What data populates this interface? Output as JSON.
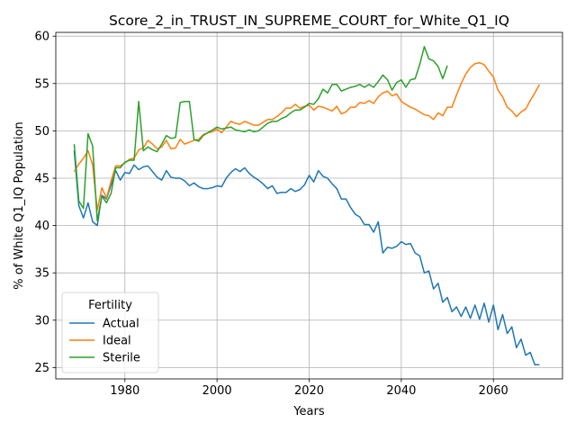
{
  "chart_data": {
    "type": "line",
    "title": "Score_2_in_TRUST_IN_SUPREME_COURT_for_White_Q1_IQ",
    "xlabel": "Years",
    "ylabel": "% of White Q1_IQ Population",
    "xlim": [
      1965,
      2075
    ],
    "ylim": [
      23.8,
      60.4
    ],
    "xticks": [
      1980,
      2000,
      2020,
      2040,
      2060
    ],
    "yticks": [
      25,
      30,
      35,
      40,
      45,
      50,
      55,
      60
    ],
    "grid": true,
    "legend": {
      "title": "Fertility",
      "placement": "lower-left"
    },
    "series": [
      {
        "name": "Actual",
        "color": "#1f77b4",
        "x": [
          1969,
          1970,
          1971,
          1972,
          1973,
          1974,
          1975,
          1976,
          1977,
          1978,
          1979,
          1980,
          1981,
          1982,
          1983,
          1984,
          1985,
          1986,
          1987,
          1988,
          1989,
          1990,
          1991,
          1992,
          1993,
          1994,
          1995,
          1996,
          1997,
          1998,
          1999,
          2000,
          2001,
          2002,
          2003,
          2004,
          2005,
          2006,
          2007,
          2008,
          2009,
          2010,
          2011,
          2012,
          2013,
          2014,
          2015,
          2016,
          2017,
          2018,
          2019,
          2020,
          2021,
          2022,
          2023,
          2024,
          2025,
          2026,
          2027,
          2028,
          2029,
          2030,
          2031,
          2032,
          2033,
          2034,
          2035,
          2036,
          2037,
          2038,
          2039,
          2040,
          2041,
          2042,
          2043,
          2044,
          2045,
          2046,
          2047,
          2048,
          2049,
          2050,
          2051,
          2052,
          2053,
          2054,
          2055,
          2056,
          2057,
          2058,
          2059,
          2060,
          2061,
          2062,
          2063,
          2064,
          2065,
          2066,
          2067,
          2068,
          2069,
          2070
        ],
        "values": [
          47.9,
          42.1,
          40.8,
          42.4,
          40.4,
          40.0,
          43.2,
          42.8,
          44.3,
          45.8,
          44.8,
          45.6,
          45.5,
          46.4,
          45.9,
          46.2,
          46.3,
          45.7,
          45.1,
          44.8,
          45.8,
          45.1,
          45.0,
          45.0,
          44.7,
          44.2,
          44.5,
          44.1,
          43.9,
          43.9,
          44.0,
          44.2,
          44.1,
          45.0,
          45.6,
          46.0,
          45.7,
          46.1,
          45.5,
          45.1,
          44.8,
          44.4,
          43.9,
          44.2,
          43.4,
          43.5,
          43.5,
          43.9,
          43.6,
          43.8,
          44.3,
          45.3,
          44.6,
          45.8,
          45.2,
          45.0,
          44.4,
          43.9,
          42.8,
          42.8,
          41.9,
          41.2,
          40.9,
          40.1,
          40.1,
          39.3,
          40.4,
          37.1,
          37.7,
          37.6,
          37.8,
          38.3,
          38.0,
          38.1,
          37.1,
          36.8,
          35.0,
          35.2,
          33.3,
          33.9,
          31.9,
          32.4,
          30.9,
          31.4,
          30.4,
          31.4,
          30.2,
          31.6,
          30.1,
          31.8,
          29.8,
          31.6,
          29.0,
          30.6,
          28.6,
          29.3,
          27.1,
          28.0,
          26.3,
          26.6,
          25.3,
          25.3
        ]
      },
      {
        "name": "Ideal",
        "color": "#ff7f0e",
        "x": [
          1969,
          1970,
          1971,
          1972,
          1973,
          1974,
          1975,
          1976,
          1977,
          1978,
          1979,
          1980,
          1981,
          1982,
          1983,
          1984,
          1985,
          1986,
          1987,
          1988,
          1989,
          1990,
          1991,
          1992,
          1993,
          1994,
          1995,
          1996,
          1997,
          1998,
          1999,
          2000,
          2001,
          2002,
          2003,
          2004,
          2005,
          2006,
          2007,
          2008,
          2009,
          2010,
          2011,
          2012,
          2013,
          2014,
          2015,
          2016,
          2017,
          2018,
          2019,
          2020,
          2021,
          2022,
          2023,
          2024,
          2025,
          2026,
          2027,
          2028,
          2029,
          2030,
          2031,
          2032,
          2033,
          2034,
          2035,
          2036,
          2037,
          2038,
          2039,
          2040,
          2041,
          2042,
          2043,
          2044,
          2045,
          2046,
          2047,
          2048,
          2049,
          2050,
          2051,
          2052,
          2053,
          2054,
          2055,
          2056,
          2057,
          2058,
          2059,
          2060,
          2061,
          2062,
          2063,
          2064,
          2065,
          2066,
          2067,
          2068,
          2069,
          2070
        ],
        "values": [
          45.7,
          46.5,
          47.1,
          47.9,
          46.4,
          41.6,
          44.0,
          42.9,
          44.7,
          46.3,
          46.3,
          46.6,
          47.0,
          47.1,
          48.0,
          48.2,
          49.0,
          48.6,
          48.1,
          48.3,
          49.0,
          48.1,
          48.2,
          49.1,
          48.6,
          48.8,
          49.0,
          49.1,
          49.6,
          49.8,
          49.9,
          50.2,
          49.8,
          50.4,
          51.0,
          50.8,
          50.7,
          51.0,
          50.8,
          50.6,
          50.6,
          50.9,
          51.2,
          51.2,
          51.5,
          51.9,
          52.4,
          52.4,
          52.8,
          52.4,
          52.6,
          52.7,
          52.2,
          52.6,
          52.5,
          52.3,
          52.1,
          52.6,
          51.8,
          52.0,
          52.5,
          52.5,
          53.0,
          52.9,
          53.2,
          52.9,
          53.6,
          54.0,
          54.2,
          53.7,
          53.9,
          53.1,
          52.8,
          52.5,
          52.3,
          52.0,
          51.7,
          51.6,
          51.2,
          51.9,
          51.6,
          52.5,
          52.5,
          53.8,
          55.0,
          56.0,
          56.7,
          57.1,
          57.2,
          57.0,
          56.3,
          55.7,
          54.3,
          53.6,
          52.5,
          52.1,
          51.5,
          52.0,
          52.3,
          53.2,
          54.0,
          54.9
        ]
      },
      {
        "name": "Sterile",
        "color": "#2ca02c",
        "x": [
          1969,
          1970,
          1971,
          1972,
          1973,
          1974,
          1975,
          1976,
          1977,
          1978,
          1979,
          1980,
          1981,
          1982,
          1983,
          1984,
          1985,
          1986,
          1987,
          1988,
          1989,
          1990,
          1991,
          1992,
          1993,
          1994,
          1995,
          1996,
          1997,
          1998,
          1999,
          2000,
          2001,
          2002,
          2003,
          2004,
          2005,
          2006,
          2007,
          2008,
          2009,
          2010,
          2011,
          2012,
          2013,
          2014,
          2015,
          2016,
          2017,
          2018,
          2019,
          2020,
          2021,
          2022,
          2023,
          2024,
          2025,
          2026,
          2027,
          2028,
          2029,
          2030,
          2031,
          2032,
          2033,
          2034,
          2035,
          2036,
          2037,
          2038,
          2039,
          2040,
          2041,
          2042,
          2043,
          2044,
          2045,
          2046,
          2047,
          2048,
          2049,
          2050
        ],
        "values": [
          48.6,
          42.6,
          41.8,
          49.7,
          48.4,
          40.5,
          43.1,
          42.4,
          43.4,
          46.1,
          46.1,
          46.7,
          46.9,
          46.9,
          53.1,
          47.9,
          48.3,
          48.0,
          47.8,
          48.6,
          49.5,
          49.2,
          49.3,
          53.0,
          53.1,
          53.1,
          49.1,
          48.9,
          49.5,
          49.8,
          50.1,
          50.4,
          50.2,
          50.3,
          50.4,
          50.1,
          50.0,
          49.9,
          50.1,
          49.9,
          50.0,
          50.4,
          50.8,
          51.0,
          51.0,
          51.3,
          51.5,
          51.9,
          52.2,
          52.2,
          52.5,
          52.9,
          52.8,
          53.4,
          54.4,
          54.0,
          54.9,
          54.9,
          54.2,
          54.4,
          54.6,
          54.7,
          54.9,
          54.6,
          54.9,
          54.6,
          55.2,
          55.9,
          55.4,
          54.3,
          55.1,
          55.4,
          54.6,
          55.4,
          55.5,
          57.0,
          58.9,
          57.6,
          57.4,
          56.8,
          55.5,
          56.9
        ]
      }
    ]
  }
}
